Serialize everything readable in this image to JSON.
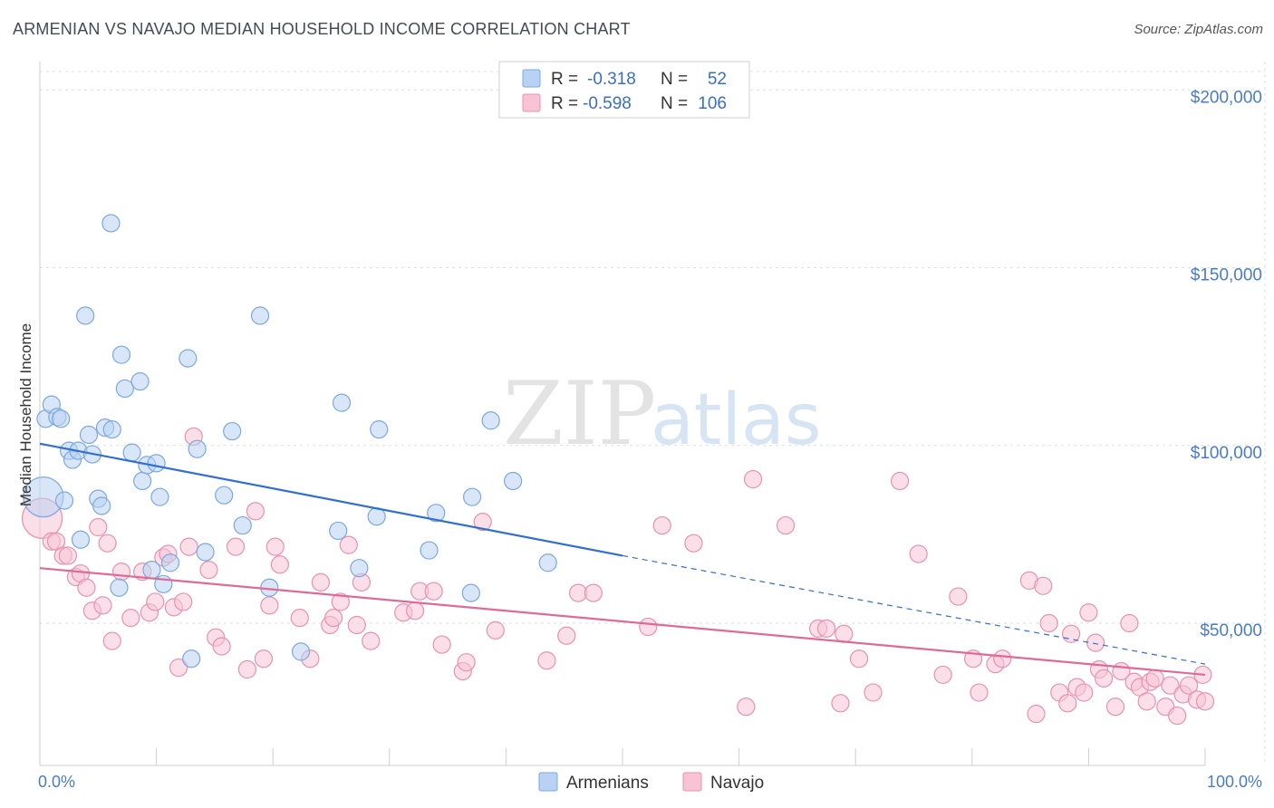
{
  "title": "ARMENIAN VS NAVAJO MEDIAN HOUSEHOLD INCOME CORRELATION CHART",
  "source": "Source: ZipAtlas.com",
  "watermark": {
    "zip": "ZIP",
    "atlas": "atlas"
  },
  "colors": {
    "armenian_fill": "#b9d2f3",
    "armenian_stroke": "#7aa8e0",
    "armenian_line": "#2f6fd0",
    "navajo_fill": "#f8c4d5",
    "navajo_stroke": "#e891b0",
    "navajo_line": "#e06a96",
    "grid": "#dddddd",
    "axis_tick": "#4a7cc4"
  },
  "legend_top": {
    "rows": [
      {
        "r_label": "R =",
        "r_value": "-0.318",
        "n_label": "N =",
        "n_value": "52"
      },
      {
        "r_label": "R =",
        "r_value": "-0.598",
        "n_label": "N =",
        "n_value": "106"
      }
    ]
  },
  "chart_data": {
    "type": "scatter",
    "ylabel": "Median Household Income",
    "xlabel": "",
    "xlim": [
      0,
      100
    ],
    "ylim": [
      10000,
      210000
    ],
    "x_tick_labels": [
      {
        "x": 0,
        "label": "0.0%"
      },
      {
        "x": 100,
        "label": "100.0%"
      }
    ],
    "y_ticks": [
      {
        "y": 50000,
        "label": "$50,000"
      },
      {
        "y": 100000,
        "label": "$100,000"
      },
      {
        "y": 150000,
        "label": "$150,000"
      },
      {
        "y": 200000,
        "label": "$200,000"
      }
    ],
    "grid": true,
    "legend_position": "bottom-center",
    "series": [
      {
        "name": "Armenians",
        "r": -0.318,
        "n": 52,
        "trend": {
          "x0": 0,
          "y0": 100500,
          "x1": 50,
          "y1": 69000,
          "dash_to_x": 100,
          "dash_to_y": 38500
        },
        "points": [
          [
            0.3,
            85500,
            1
          ],
          [
            0.5,
            107500,
            0
          ],
          [
            1.0,
            111500,
            0
          ],
          [
            1.5,
            108000,
            0
          ],
          [
            1.8,
            107500,
            0
          ],
          [
            2.1,
            84500,
            0
          ],
          [
            2.5,
            98500,
            0
          ],
          [
            2.8,
            96000,
            0
          ],
          [
            3.3,
            98500,
            0
          ],
          [
            3.5,
            73500,
            0
          ],
          [
            3.9,
            136500,
            0
          ],
          [
            4.2,
            103000,
            0
          ],
          [
            4.5,
            97500,
            0
          ],
          [
            5.0,
            85000,
            0
          ],
          [
            5.3,
            83000,
            0
          ],
          [
            5.6,
            105000,
            0
          ],
          [
            6.2,
            104500,
            0
          ],
          [
            6.8,
            60000,
            0
          ],
          [
            7.0,
            125500,
            0
          ],
          [
            7.3,
            116000,
            0
          ],
          [
            7.9,
            98000,
            0
          ],
          [
            8.6,
            118000,
            0
          ],
          [
            8.8,
            90000,
            0
          ],
          [
            9.2,
            94500,
            0
          ],
          [
            9.6,
            65000,
            0
          ],
          [
            10.0,
            95000,
            0
          ],
          [
            10.3,
            85500,
            0
          ],
          [
            10.6,
            61000,
            0
          ],
          [
            11.2,
            67000,
            0
          ],
          [
            12.7,
            124500,
            0
          ],
          [
            13.0,
            40000,
            0
          ],
          [
            13.5,
            99000,
            0
          ],
          [
            14.2,
            70000,
            0
          ],
          [
            15.8,
            86000,
            0
          ],
          [
            16.5,
            104000,
            0
          ],
          [
            17.4,
            77500,
            0
          ],
          [
            18.9,
            136500,
            0
          ],
          [
            19.7,
            60000,
            0
          ],
          [
            22.4,
            42000,
            0
          ],
          [
            25.6,
            76000,
            0
          ],
          [
            25.9,
            112000,
            0
          ],
          [
            27.4,
            65500,
            0
          ],
          [
            28.9,
            80000,
            0
          ],
          [
            29.1,
            104500,
            0
          ],
          [
            33.4,
            70500,
            0
          ],
          [
            34.0,
            81000,
            0
          ],
          [
            37.0,
            58500,
            0
          ],
          [
            37.1,
            85500,
            0
          ],
          [
            38.7,
            107000,
            0
          ],
          [
            40.6,
            90000,
            0
          ],
          [
            43.6,
            67000,
            0
          ],
          [
            6.1,
            162500,
            0
          ]
        ]
      },
      {
        "name": "Navajo",
        "r": -0.598,
        "n": 106,
        "trend": {
          "x0": 0,
          "y0": 65500,
          "x1": 100,
          "y1": 35500
        },
        "points": [
          [
            0.2,
            79500,
            1
          ],
          [
            1.0,
            73000,
            0
          ],
          [
            1.4,
            73000,
            0
          ],
          [
            2.0,
            69000,
            0
          ],
          [
            2.4,
            69000,
            0
          ],
          [
            3.1,
            63000,
            0
          ],
          [
            3.5,
            64000,
            0
          ],
          [
            4.0,
            60000,
            0
          ],
          [
            4.5,
            53500,
            0
          ],
          [
            5.0,
            77000,
            0
          ],
          [
            5.4,
            55000,
            0
          ],
          [
            5.8,
            72500,
            0
          ],
          [
            6.2,
            45000,
            0
          ],
          [
            7.0,
            64500,
            0
          ],
          [
            7.8,
            51500,
            0
          ],
          [
            8.8,
            64500,
            0
          ],
          [
            9.4,
            53000,
            0
          ],
          [
            9.9,
            56000,
            0
          ],
          [
            10.6,
            68500,
            0
          ],
          [
            11.0,
            69500,
            0
          ],
          [
            11.5,
            54500,
            0
          ],
          [
            11.9,
            37500,
            0
          ],
          [
            12.3,
            56000,
            0
          ],
          [
            12.8,
            71500,
            0
          ],
          [
            13.2,
            102500,
            0
          ],
          [
            14.5,
            65000,
            0
          ],
          [
            15.1,
            46000,
            0
          ],
          [
            15.6,
            43500,
            0
          ],
          [
            16.8,
            71500,
            0
          ],
          [
            17.8,
            37000,
            0
          ],
          [
            18.5,
            81500,
            0
          ],
          [
            19.2,
            40000,
            0
          ],
          [
            19.7,
            55000,
            0
          ],
          [
            20.2,
            71500,
            0
          ],
          [
            20.6,
            66500,
            0
          ],
          [
            22.3,
            51500,
            0
          ],
          [
            23.2,
            40000,
            0
          ],
          [
            24.1,
            61500,
            0
          ],
          [
            24.9,
            49500,
            0
          ],
          [
            25.2,
            51500,
            0
          ],
          [
            25.8,
            56000,
            0
          ],
          [
            26.5,
            72000,
            0
          ],
          [
            27.2,
            49500,
            0
          ],
          [
            27.6,
            61500,
            0
          ],
          [
            28.4,
            45000,
            0
          ],
          [
            31.2,
            53000,
            0
          ],
          [
            32.2,
            53500,
            0
          ],
          [
            32.6,
            59000,
            0
          ],
          [
            33.8,
            59000,
            0
          ],
          [
            34.5,
            44000,
            0
          ],
          [
            36.3,
            36500,
            0
          ],
          [
            36.6,
            39000,
            0
          ],
          [
            38.0,
            78500,
            0
          ],
          [
            39.1,
            48000,
            0
          ],
          [
            43.5,
            39500,
            0
          ],
          [
            45.2,
            46500,
            0
          ],
          [
            46.2,
            58500,
            0
          ],
          [
            47.5,
            58500,
            0
          ],
          [
            52.2,
            49000,
            0
          ],
          [
            53.4,
            77500,
            0
          ],
          [
            56.1,
            72500,
            0
          ],
          [
            60.6,
            26500,
            0
          ],
          [
            61.2,
            90500,
            0
          ],
          [
            64.0,
            77500,
            0
          ],
          [
            66.8,
            48500,
            0
          ],
          [
            67.5,
            48500,
            0
          ],
          [
            68.7,
            27500,
            0
          ],
          [
            69.0,
            47000,
            0
          ],
          [
            70.3,
            40000,
            0
          ],
          [
            71.5,
            30500,
            0
          ],
          [
            73.8,
            90000,
            0
          ],
          [
            75.4,
            69500,
            0
          ],
          [
            77.5,
            35500,
            0
          ],
          [
            78.8,
            57500,
            0
          ],
          [
            80.1,
            40000,
            0
          ],
          [
            80.6,
            30500,
            0
          ],
          [
            82.0,
            38500,
            0
          ],
          [
            82.6,
            40000,
            0
          ],
          [
            84.9,
            62000,
            0
          ],
          [
            85.5,
            24500,
            0
          ],
          [
            86.1,
            60500,
            0
          ],
          [
            86.6,
            50000,
            0
          ],
          [
            87.5,
            30500,
            0
          ],
          [
            88.2,
            27500,
            0
          ],
          [
            88.5,
            47000,
            0
          ],
          [
            89.0,
            32000,
            0
          ],
          [
            89.6,
            30500,
            0
          ],
          [
            90.0,
            53000,
            0
          ],
          [
            90.6,
            44500,
            0
          ],
          [
            90.9,
            37000,
            0
          ],
          [
            91.3,
            34500,
            0
          ],
          [
            92.3,
            26500,
            0
          ],
          [
            92.8,
            36500,
            0
          ],
          [
            93.5,
            50000,
            0
          ],
          [
            93.9,
            33500,
            0
          ],
          [
            94.4,
            32000,
            0
          ],
          [
            95.0,
            28000,
            0
          ],
          [
            95.3,
            33500,
            0
          ],
          [
            95.7,
            34500,
            0
          ],
          [
            96.6,
            26500,
            0
          ],
          [
            97.0,
            32500,
            0
          ],
          [
            97.6,
            24000,
            0
          ],
          [
            98.1,
            30000,
            0
          ],
          [
            98.6,
            32500,
            0
          ],
          [
            99.3,
            28500,
            0
          ],
          [
            99.8,
            35500,
            0
          ],
          [
            100.0,
            28000,
            0
          ]
        ]
      }
    ]
  }
}
